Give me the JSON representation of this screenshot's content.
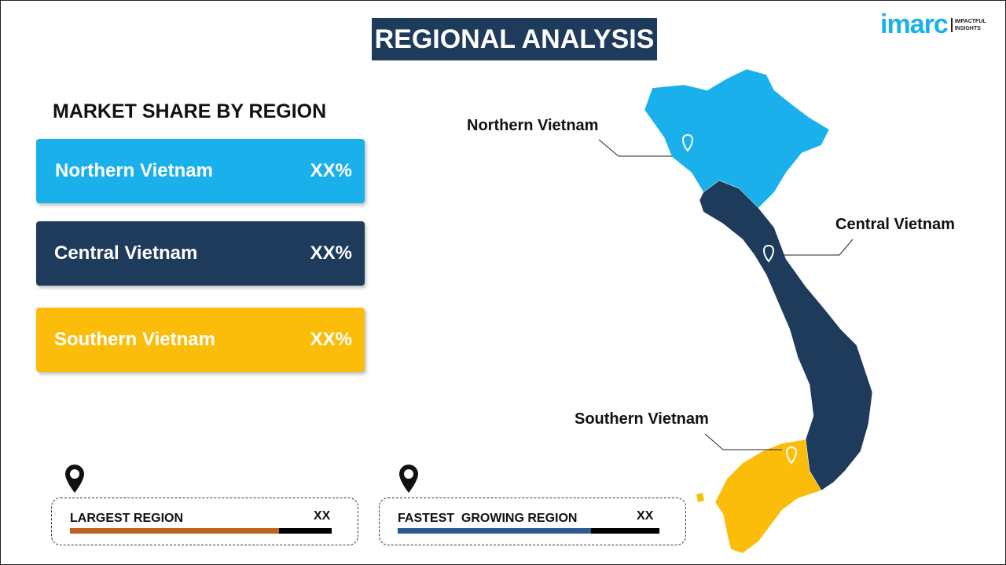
{
  "header": {
    "title": "REGIONAL ANALYSIS",
    "logo_text": "imarc",
    "logo_tagline": [
      "IMPACTFUL",
      "INSIGHTS"
    ]
  },
  "section_title": "MARKET SHARE BY REGION",
  "regions": [
    {
      "name": "Northern Vietnam",
      "share": "XX%",
      "color": "#1ab0ec"
    },
    {
      "name": "Central Vietnam",
      "share": "XX%",
      "color": "#1f3b5c"
    },
    {
      "name": "Southern Vietnam",
      "share": "XX%",
      "color": "#fbbd0a"
    }
  ],
  "map_labels": {
    "north": "Northern Vietnam",
    "central": "Central Vietnam",
    "south": "Southern Vietnam"
  },
  "summary": [
    {
      "label": "LARGEST REGION",
      "value": "XX",
      "progress": 0.8,
      "color": "#c0621f"
    },
    {
      "label": "FASTEST  GROWING REGION",
      "value": "XX",
      "progress": 0.74,
      "color": "#2e5a93"
    }
  ]
}
